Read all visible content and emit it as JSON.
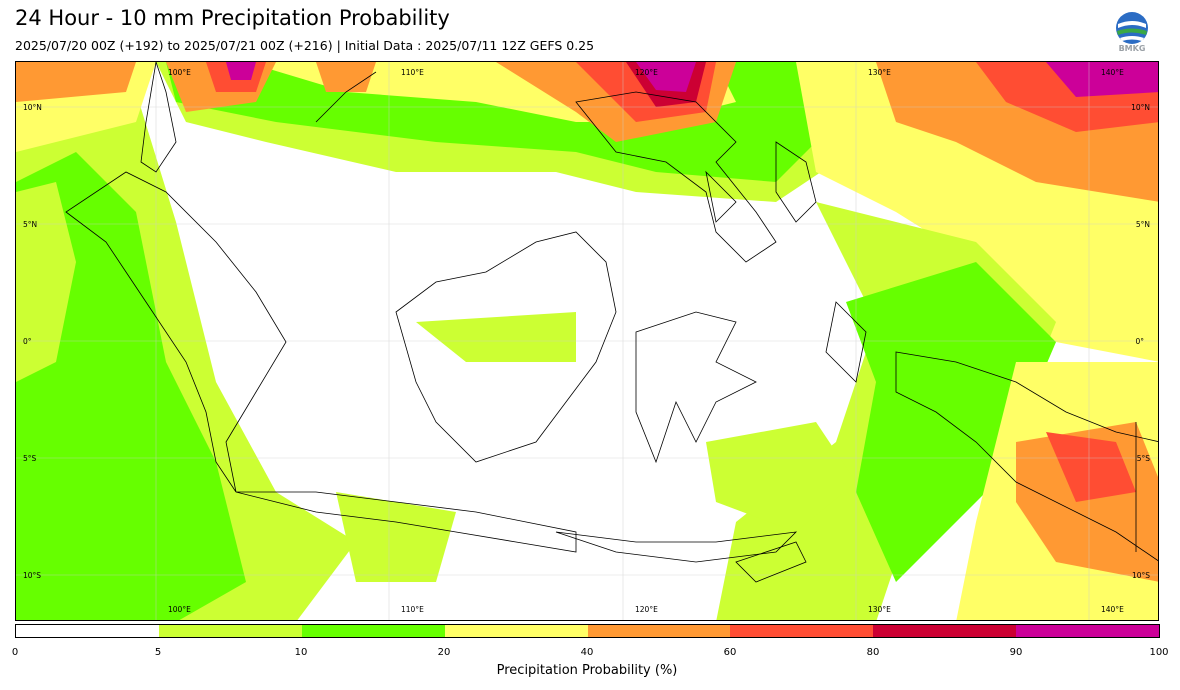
{
  "title": "24 Hour - 10 mm Precipitation Probability",
  "subtitle": "2025/07/20 00Z (+192) to 2025/07/21 00Z (+216) | Initial Data : 2025/07/11 12Z GEFS 0.25",
  "logo": {
    "icon": "bmkg-globe-logo",
    "text": "BMKG"
  },
  "map": {
    "lon_labels_top": [
      "100°E",
      "110°E",
      "120°E",
      "130°E",
      "140°E"
    ],
    "lon_labels_bottom": [
      "100°E",
      "110°E",
      "120°E",
      "130°E",
      "140°E"
    ],
    "lat_labels_left": [
      "10°N",
      "5°N",
      "0°",
      "5°S",
      "10°S"
    ],
    "lat_labels_right": [
      "10°N",
      "5°N",
      "0°",
      "5°S",
      "10°S"
    ]
  },
  "colorbar": {
    "title": "Precipitation Probability (%)",
    "ticks": [
      "0",
      "5",
      "10",
      "20",
      "40",
      "60",
      "80",
      "90",
      "100"
    ],
    "colors": [
      "#ffffff",
      "#ccff33",
      "#66ff00",
      "#ffff66",
      "#ff9933",
      "#ff4d33",
      "#cc0033",
      "#cc0099"
    ]
  }
}
